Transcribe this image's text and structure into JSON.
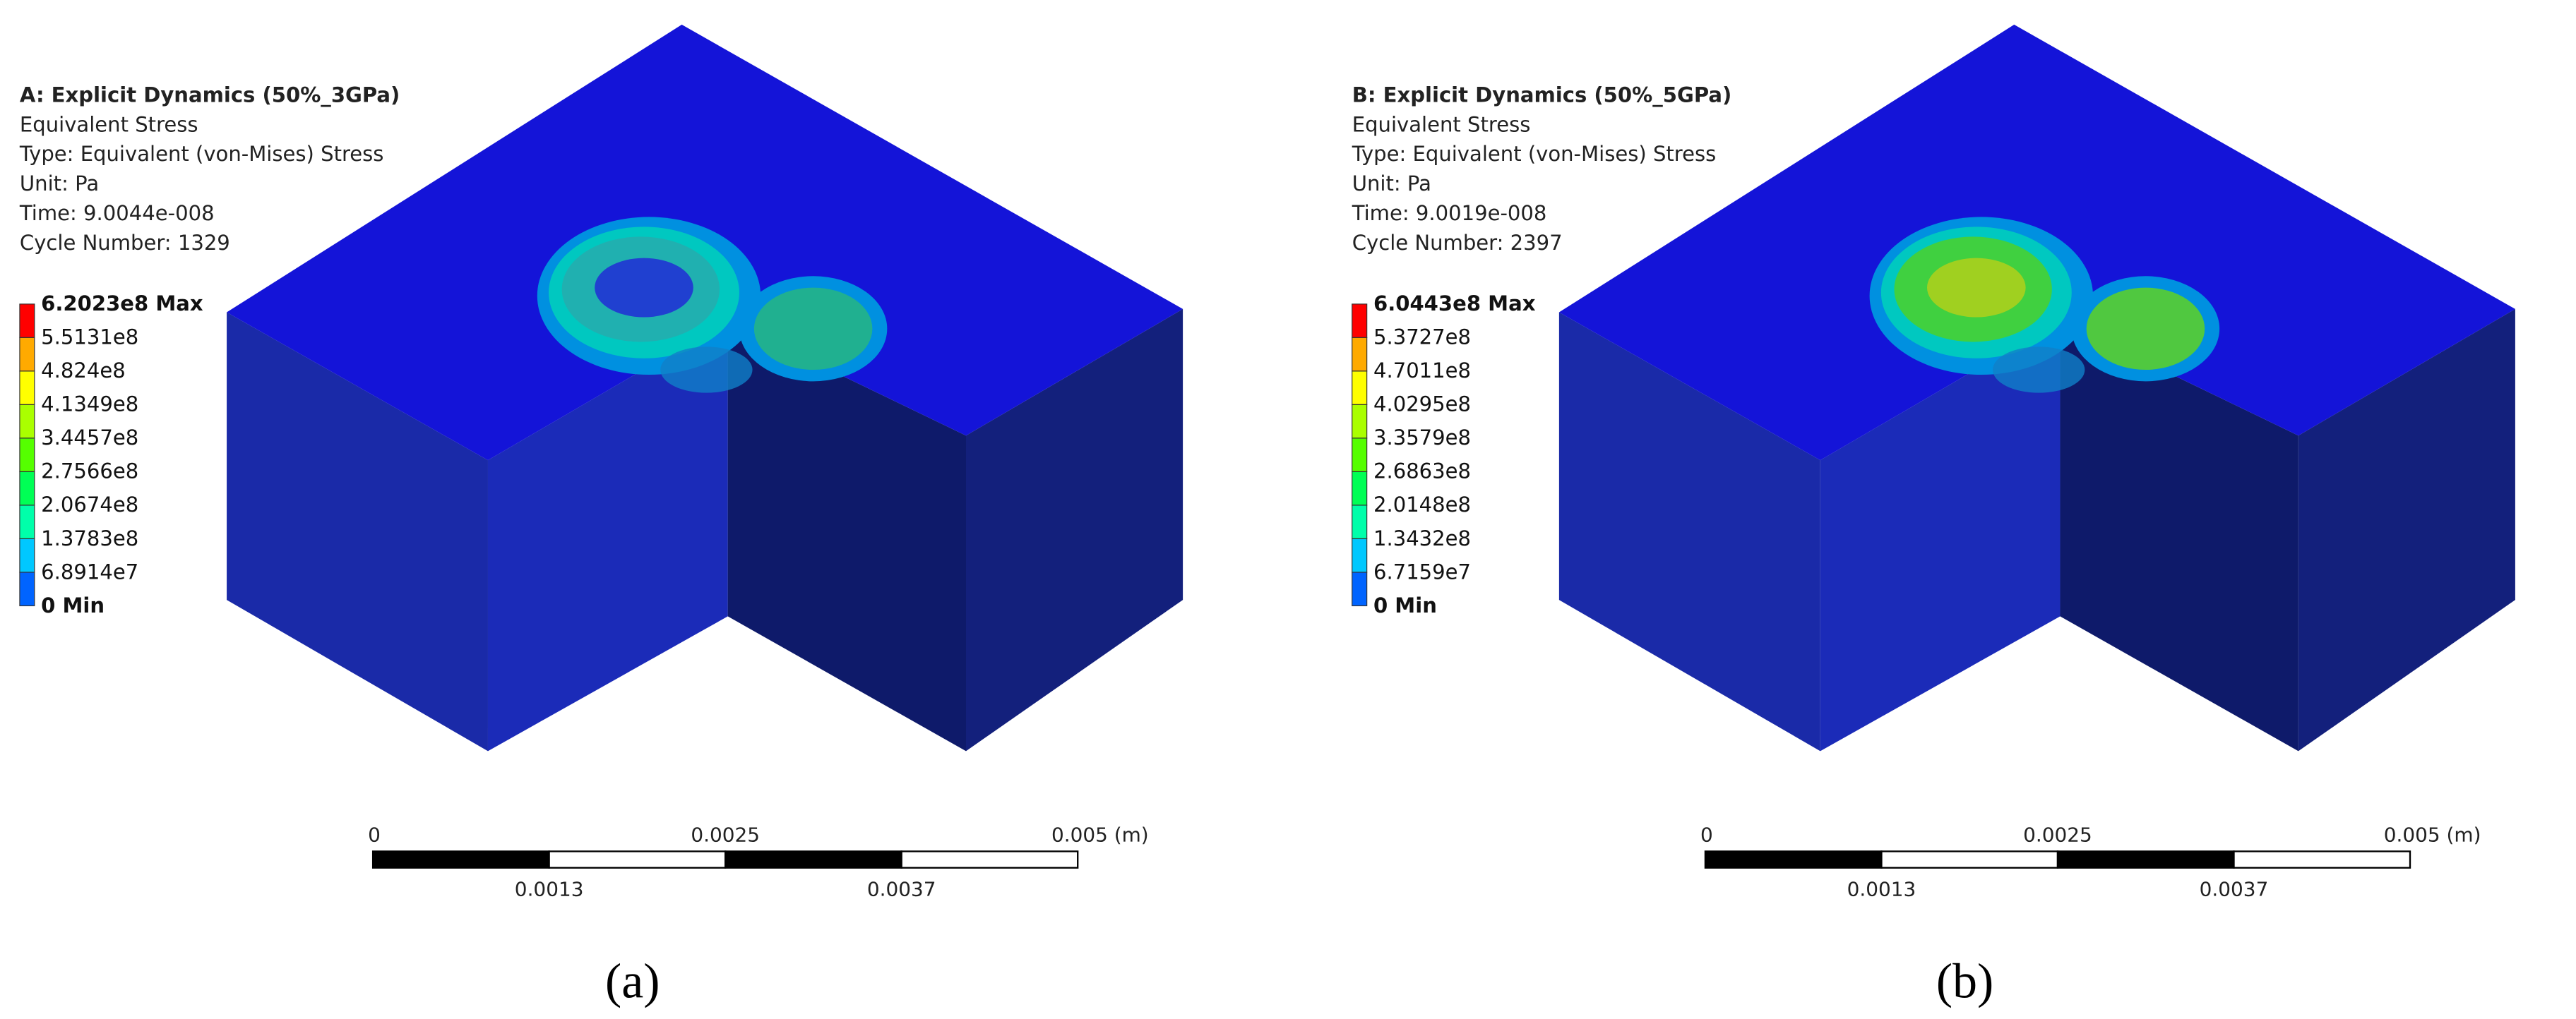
{
  "panels": [
    {
      "header": {
        "title": "A: Explicit Dynamics (50%_3GPa)",
        "result": "Equivalent Stress",
        "type": "Type: Equivalent (von-Mises) Stress",
        "unit": "Unit: Pa",
        "time": "Time: 9.0044e-008",
        "cycle": "Cycle Number: 1329"
      },
      "legend": [
        "6.2023e8 Max",
        "5.5131e8",
        "4.824e8",
        "4.1349e8",
        "3.4457e8",
        "2.7566e8",
        "2.0674e8",
        "1.3783e8",
        "6.8914e7",
        "0 Min"
      ],
      "scale": {
        "top": [
          "0",
          "0.0025",
          "0.005 (m)"
        ],
        "bottom": [
          "0.0013",
          "0.0037"
        ]
      },
      "caption": "(a)"
    },
    {
      "header": {
        "title": "B: Explicit Dynamics (50%_5GPa)",
        "result": "Equivalent Stress",
        "type": "Type: Equivalent (von-Mises) Stress",
        "unit": "Unit: Pa",
        "time": "Time: 9.0019e-008",
        "cycle": "Cycle Number: 2397"
      },
      "legend": [
        "6.0443e8 Max",
        "5.3727e8",
        "4.7011e8",
        "4.0295e8",
        "3.3579e8",
        "2.6863e8",
        "2.0148e8",
        "1.3432e8",
        "6.7159e7",
        "0 Min"
      ],
      "scale": {
        "top": [
          "0",
          "0.0025",
          "0.005 (m)"
        ],
        "bottom": [
          "0.0013",
          "0.0037"
        ]
      },
      "caption": "(b)"
    }
  ]
}
